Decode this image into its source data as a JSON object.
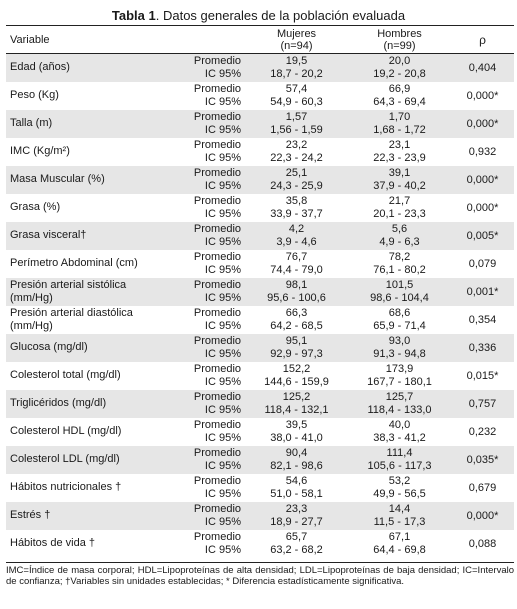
{
  "caption": {
    "label": "Tabla 1",
    "text": ". Datos generales de la población evaluada"
  },
  "header": {
    "variable": "Variable",
    "women": "Mujeres",
    "women_n": "(n=94)",
    "men": "Hombres",
    "men_n": "(n=99)",
    "p": "ρ"
  },
  "stat_labels": {
    "mean": "Promedio",
    "ci": "IC 95%"
  },
  "rows": [
    {
      "label": "Edad (años)",
      "w_mean": "19,5",
      "w_ci": "18,7 - 20,2",
      "m_mean": "20,0",
      "m_ci": "19,2 - 20,8",
      "p": "0,404"
    },
    {
      "label": "Peso (Kg)",
      "w_mean": "57,4",
      "w_ci": "54,9 - 60,3",
      "m_mean": "66,9",
      "m_ci": "64,3 - 69,4",
      "p": "0,000*"
    },
    {
      "label": "Talla (m)",
      "w_mean": "1,57",
      "w_ci": "1,56 - 1,59",
      "m_mean": "1,70",
      "m_ci": "1,68 - 1,72",
      "p": "0,000*"
    },
    {
      "label": "IMC (Kg/m²)",
      "w_mean": "23,2",
      "w_ci": "22,3 - 24,2",
      "m_mean": "23,1",
      "m_ci": "22,3 - 23,9",
      "p": "0,932"
    },
    {
      "label": "Masa Muscular (%)",
      "w_mean": "25,1",
      "w_ci": "24,3 - 25,9",
      "m_mean": "39,1",
      "m_ci": "37,9 - 40,2",
      "p": "0,000*"
    },
    {
      "label": "Grasa (%)",
      "w_mean": "35,8",
      "w_ci": "33,9 - 37,7",
      "m_mean": "21,7",
      "m_ci": "20,1 - 23,3",
      "p": "0,000*"
    },
    {
      "label": "Grasa visceral†",
      "w_mean": "4,2",
      "w_ci": "3,9 - 4,6",
      "m_mean": "5,6",
      "m_ci": "4,9 - 6,3",
      "p": "0,005*"
    },
    {
      "label": "Perímetro Abdominal (cm)",
      "w_mean": "76,7",
      "w_ci": "74,4 - 79,0",
      "m_mean": "78,2",
      "m_ci": "76,1 - 80,2",
      "p": "0,079"
    },
    {
      "label": "Presión arterial sistólica (mm/Hg)",
      "w_mean": "98,1",
      "w_ci": "95,6 - 100,6",
      "m_mean": "101,5",
      "m_ci": "98,6 - 104,4",
      "p": "0,001*"
    },
    {
      "label": "Presión arterial diastólica (mm/Hg)",
      "w_mean": "66,3",
      "w_ci": "64,2 - 68,5",
      "m_mean": "68,6",
      "m_ci": "65,9 - 71,4",
      "p": "0,354"
    },
    {
      "label": "Glucosa (mg/dl)",
      "w_mean": "95,1",
      "w_ci": "92,9 - 97,3",
      "m_mean": "93,0",
      "m_ci": "91,3 - 94,8",
      "p": "0,336"
    },
    {
      "label": "Colesterol total (mg/dl)",
      "w_mean": "152,2",
      "w_ci": "144,6 - 159,9",
      "m_mean": "173,9",
      "m_ci": "167,7 - 180,1",
      "p": "0,015*"
    },
    {
      "label": "Triglicéridos (mg/dl)",
      "w_mean": "125,2",
      "w_ci": "118,4 - 132,1",
      "m_mean": "125,7",
      "m_ci": "118,4 - 133,0",
      "p": "0,757"
    },
    {
      "label": "Colesterol HDL (mg/dl)",
      "w_mean": "39,5",
      "w_ci": "38,0 - 41,0",
      "m_mean": "40,0",
      "m_ci": "38,3 - 41,2",
      "p": "0,232"
    },
    {
      "label": "Colesterol LDL (mg/dl)",
      "w_mean": "90,4",
      "w_ci": "82,1 - 98,6",
      "m_mean": "111,4",
      "m_ci": "105,6 - 117,3",
      "p": "0,035*"
    },
    {
      "label": "Hábitos nutricionales †",
      "w_mean": "54,6",
      "w_ci": "51,0 - 58,1",
      "m_mean": "53,2",
      "m_ci": "49,9 - 56,5",
      "p": "0,679"
    },
    {
      "label": "Estrés †",
      "w_mean": "23,3",
      "w_ci": "18,9 - 27,7",
      "m_mean": "14,4",
      "m_ci": "11,5 - 17,3",
      "p": "0,000*"
    },
    {
      "label": "Hábitos de vida †",
      "w_mean": "65,7",
      "w_ci": "63,2 - 68,2",
      "m_mean": "67,1",
      "m_ci": "64,4 - 69,8",
      "p": "0,088"
    }
  ],
  "footnote": "IMC=Índice de masa corporal; HDL=Lipoproteínas de alta densidad; LDL=Lipoproteínas de baja densidad; IC=Intervalo de confianza; †Variables sin unidades establecidas; * Diferencia estadísticamente significativa."
}
